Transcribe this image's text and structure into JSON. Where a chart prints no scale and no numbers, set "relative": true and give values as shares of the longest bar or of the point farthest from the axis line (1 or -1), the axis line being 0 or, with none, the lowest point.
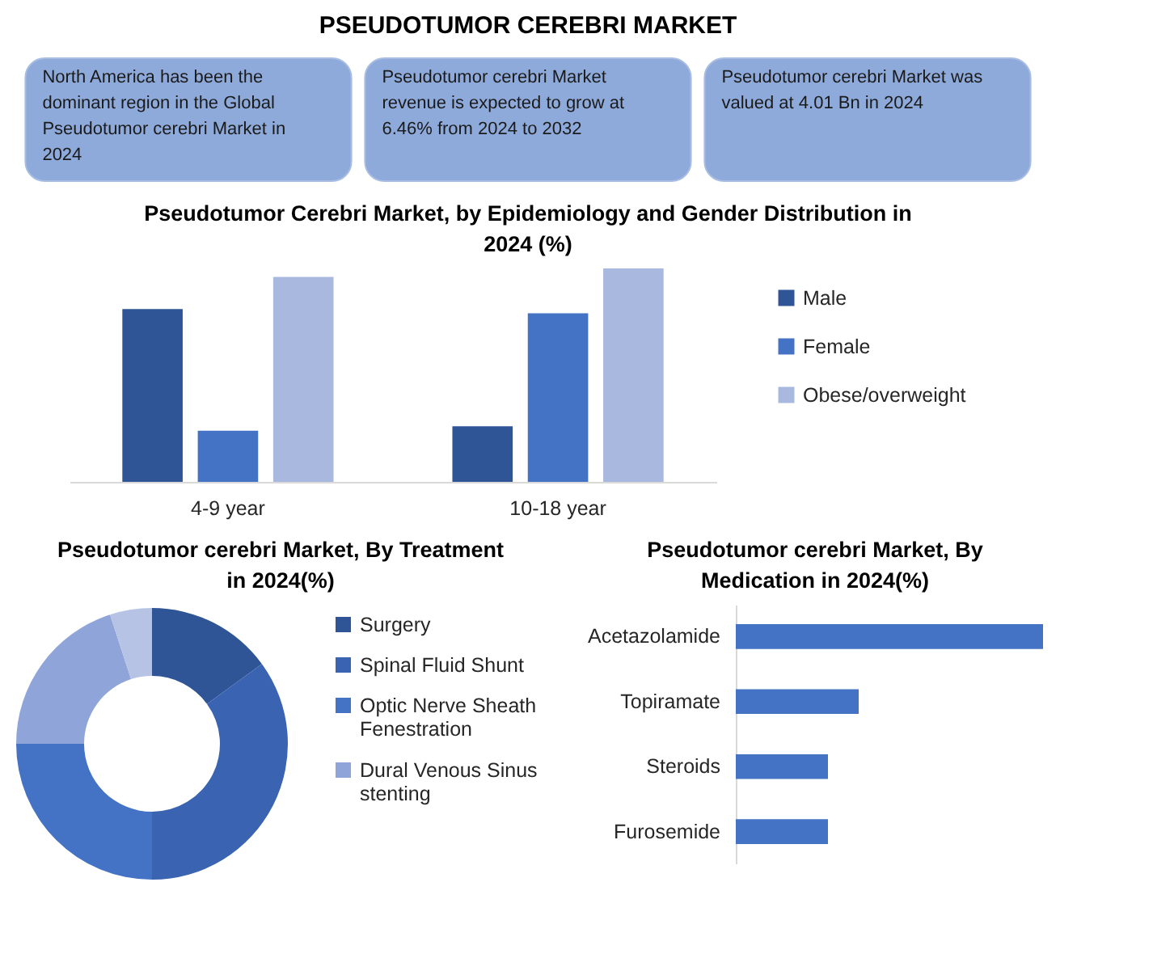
{
  "chart_data": [
    {
      "type": "other",
      "title": "PSEUDOTUMOR CEREBRI MARKET",
      "annotations": [
        "North America has been the dominant region in the Global Pseudotumor cerebri Market in 2024",
        "Pseudotumor cerebri Market revenue is expected to grow at 6.46% from 2024 to 2032",
        "Pseudotumor cerebri Market was valued at 4.01 Bn in 2024"
      ]
    },
    {
      "type": "bar",
      "title": "Pseudotumor Cerebri Market, by Epidemiology and Gender Distribution in 2024 (%)",
      "categories": [
        "4-9 year",
        "10-18 year"
      ],
      "relative": true,
      "legend": "right",
      "series": [
        {
          "name": "Male",
          "color": "#2f5597",
          "values": [
            0.81,
            0.26
          ]
        },
        {
          "name": "Female",
          "color": "#4472c4",
          "values": [
            0.24,
            0.79
          ]
        },
        {
          "name": "Obese/overweight",
          "color": "#a9b8de",
          "values": [
            0.96,
            1
          ]
        }
      ]
    },
    {
      "type": "donut",
      "title": "Pseudotumor cerebri Market, By Treatment in 2024(%)",
      "categories": [
        "Surgery",
        "Spinal Fluid Shunt",
        "Optic Nerve Sheath Fenestration",
        "Dural Venous Sinus stenting",
        null
      ],
      "values": [
        15,
        35,
        25,
        20,
        5
      ],
      "colors": [
        "#2f5597",
        "#3a63b2",
        "#4472c4",
        "#8fa4d8",
        "#b6c3e5"
      ],
      "legend": "right"
    },
    {
      "type": "bar",
      "orientation": "horizontal",
      "title": "Pseudotumor cerebri Market, By Medication in 2024(%)",
      "categories": [
        "Acetazolamide",
        "Topiramate",
        "Steroids",
        "Furosemide"
      ],
      "values": [
        1,
        0.4,
        0.3,
        0.3
      ],
      "color": "#4472c4",
      "relative": true
    }
  ]
}
